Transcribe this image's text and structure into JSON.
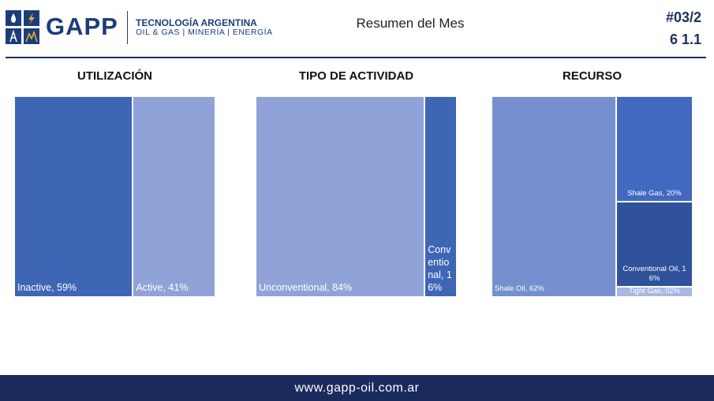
{
  "header": {
    "brand": "GAPP",
    "tagline": "TECNOLOGÍA ARGENTINA",
    "sectors": "OIL & GAS | MINERÍA | ENERGÍA",
    "title": "Resumen del Mes",
    "issue": "#03/2",
    "edition": "6 1.1"
  },
  "chart_data": [
    {
      "type": "treemap",
      "title": "UTILIZACIÓN",
      "values": [
        59,
        41
      ],
      "value_labels": [
        "Inactive, 59%",
        "Active, 41%"
      ],
      "colors": [
        "#3f65b5",
        "#8fa3d8"
      ]
    },
    {
      "type": "treemap",
      "title": "TIPO DE ACTIVIDAD",
      "values": [
        84,
        16
      ],
      "value_labels": [
        "Unconventional, 84%",
        "Conventional, 16%"
      ],
      "colors": [
        "#8fa3d8",
        "#3f65b5"
      ]
    },
    {
      "type": "treemap",
      "title": "RECURSO",
      "values": [
        62,
        20,
        16,
        2
      ],
      "value_labels": [
        "Shale Oil, 62%",
        "Shale Gas, 20%",
        "Conventional Oil, 16%",
        "Tight Gas, 02%"
      ],
      "colors": [
        "#7690cf",
        "#4169c0",
        "#2f529a",
        "#a9b8e0"
      ]
    }
  ],
  "footer": {
    "url": "www.gapp-oil.com.ar"
  }
}
